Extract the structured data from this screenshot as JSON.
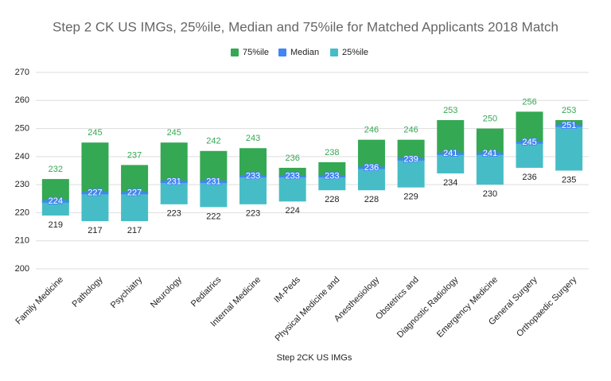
{
  "chart_data": {
    "type": "bar",
    "title": "Step 2 CK US IMGs, 25%ile, Median and 75%ile for Matched Applicants 2018 Match",
    "x_label": "Step 2CK US IMGs",
    "categories": [
      "Family Medicine",
      "Pathology",
      "Psychiatry",
      "Neurology",
      "Pediatrics",
      "Internal Medicine",
      "IM-Peds",
      "Physical Medicine and",
      "Anesthesiology",
      "Obstetrics and",
      "Diagnostic Radiology",
      "Emergency Medicine",
      "General Surgery",
      "Orthopaedic Surgery"
    ],
    "series": [
      {
        "name": "75%ile",
        "color": "#34a853",
        "values": [
          232,
          245,
          237,
          245,
          242,
          243,
          236,
          238,
          246,
          246,
          253,
          250,
          256,
          253
        ]
      },
      {
        "name": "Median",
        "color": "#4285f4",
        "values": [
          224,
          227,
          227,
          231,
          231,
          233,
          233,
          233,
          236,
          239,
          241,
          241,
          245,
          251
        ]
      },
      {
        "name": "25%ile",
        "color": "#46bdc6",
        "values": [
          219,
          217,
          217,
          223,
          222,
          223,
          224,
          228,
          228,
          229,
          234,
          230,
          236,
          235
        ]
      }
    ],
    "ylim": [
      200,
      270
    ],
    "yticks": [
      200,
      210,
      220,
      230,
      240,
      250,
      260,
      270
    ],
    "grid": true,
    "legend": "top"
  }
}
